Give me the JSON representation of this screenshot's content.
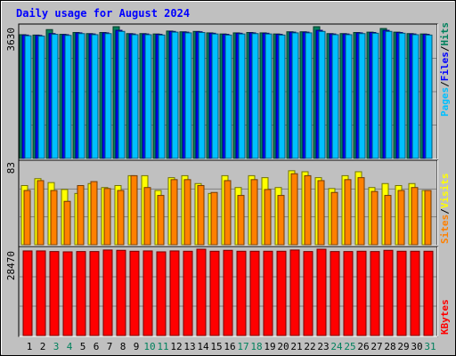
{
  "title": "Daily usage for August 2024",
  "colors": {
    "background": "#c0c0c0",
    "plot_bg": "#c0c0c0",
    "grid": "#808080",
    "title": "#0000ff",
    "hits": "#00805c",
    "files": "#0000ff",
    "pages": "#00c0ff",
    "visits": "#ffff00",
    "sites": "#ff8000",
    "kbytes": "#ff0000",
    "weekday": "#000000",
    "weekend": "#00805c"
  },
  "chart_data": [
    {
      "type": "bar",
      "name": "hits-files-pages",
      "x": [
        1,
        2,
        3,
        4,
        5,
        6,
        7,
        8,
        9,
        10,
        11,
        12,
        13,
        14,
        15,
        16,
        17,
        18,
        19,
        20,
        21,
        22,
        23,
        24,
        25,
        26,
        27,
        28,
        29,
        30,
        31
      ],
      "weekend_days": [
        3,
        4,
        10,
        11,
        17,
        18,
        24,
        25,
        31
      ],
      "ymax_label": "3630",
      "ylim": [
        0,
        3630
      ],
      "legend": [
        "Pages",
        "/",
        "Files",
        "/",
        "Hits"
      ],
      "series": [
        {
          "name": "Hits",
          "values": [
            3410,
            3400,
            3550,
            3420,
            3470,
            3440,
            3470,
            3630,
            3440,
            3440,
            3430,
            3510,
            3490,
            3500,
            3460,
            3430,
            3460,
            3470,
            3460,
            3430,
            3490,
            3490,
            3630,
            3440,
            3440,
            3470,
            3480,
            3580,
            3480,
            3440,
            3430
          ]
        },
        {
          "name": "Files",
          "values": [
            3400,
            3390,
            3440,
            3410,
            3460,
            3430,
            3460,
            3530,
            3430,
            3430,
            3420,
            3500,
            3480,
            3490,
            3450,
            3420,
            3450,
            3460,
            3450,
            3420,
            3480,
            3480,
            3530,
            3430,
            3430,
            3460,
            3470,
            3530,
            3470,
            3430,
            3420
          ]
        },
        {
          "name": "Pages",
          "values": [
            3380,
            3370,
            3420,
            3390,
            3440,
            3410,
            3440,
            3500,
            3410,
            3410,
            3400,
            3480,
            3460,
            3470,
            3430,
            3400,
            3430,
            3440,
            3430,
            3400,
            3460,
            3460,
            3500,
            3410,
            3410,
            3440,
            3450,
            3500,
            3450,
            3410,
            3400
          ]
        }
      ]
    },
    {
      "type": "bar",
      "name": "visits-sites",
      "x": [
        1,
        2,
        3,
        4,
        5,
        6,
        7,
        8,
        9,
        10,
        11,
        12,
        13,
        14,
        15,
        16,
        17,
        18,
        19,
        20,
        21,
        22,
        23,
        24,
        25,
        26,
        27,
        28,
        29,
        30,
        31
      ],
      "ymax_label": "83",
      "ylim": [
        0,
        83
      ],
      "legend": [
        "Sites",
        "/",
        "Visits"
      ],
      "series": [
        {
          "name": "Visits",
          "values": [
            60,
            67,
            63,
            56,
            52,
            62,
            58,
            60,
            70,
            70,
            55,
            68,
            70,
            62,
            52,
            70,
            58,
            70,
            68,
            58,
            75,
            74,
            68,
            57,
            70,
            74,
            58,
            62,
            60,
            62,
            55
          ]
        },
        {
          "name": "Sites",
          "values": [
            55,
            65,
            55,
            44,
            60,
            64,
            57,
            55,
            70,
            58,
            50,
            66,
            66,
            60,
            53,
            65,
            50,
            66,
            56,
            50,
            72,
            70,
            65,
            53,
            66,
            68,
            54,
            50,
            55,
            58,
            55
          ]
        }
      ]
    },
    {
      "type": "bar",
      "name": "kbytes",
      "x": [
        1,
        2,
        3,
        4,
        5,
        6,
        7,
        8,
        9,
        10,
        11,
        12,
        13,
        14,
        15,
        16,
        17,
        18,
        19,
        20,
        21,
        22,
        23,
        24,
        25,
        26,
        27,
        28,
        29,
        30,
        31
      ],
      "ymax_label": "28470",
      "ylim": [
        0,
        28470
      ],
      "legend": [
        "KBytes"
      ],
      "series": [
        {
          "name": "KBytes",
          "values": [
            27900,
            27900,
            27700,
            27600,
            27700,
            27700,
            28200,
            28100,
            27800,
            27900,
            27600,
            27900,
            27800,
            28470,
            27800,
            28100,
            27800,
            27800,
            27800,
            27800,
            28200,
            27700,
            28470,
            27700,
            27700,
            27800,
            27700,
            28100,
            27800,
            27800,
            27800
          ]
        }
      ]
    }
  ]
}
